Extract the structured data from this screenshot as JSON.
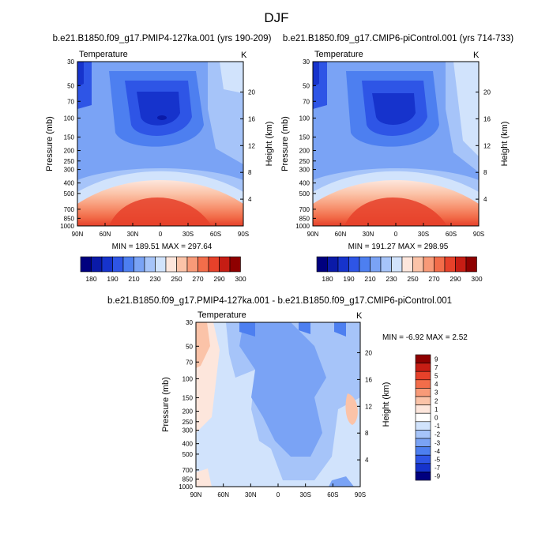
{
  "figure": {
    "title": "DJF",
    "bottom_title": "b.e21.B1850.f09_g17.PMIP4-127ka.001 - b.e21.B1850.f09_g17.CMIP6-piControl.001"
  },
  "chart_data": [
    {
      "type": "heatmap",
      "title": "b.e21.B1850.f09_g17.PMIP4-127ka.001 (yrs 190-209)",
      "left_label": "Temperature",
      "units": "K",
      "ylabel": "Pressure (mb)",
      "ylabel_right": "Height (km)",
      "x_ticks": [
        "90N",
        "60N",
        "30N",
        "0",
        "30S",
        "60S",
        "90S"
      ],
      "y_ticks": [
        "30",
        "50",
        "70",
        "100",
        "150",
        "200",
        "250",
        "300",
        "400",
        "500",
        "700",
        "850",
        "1000"
      ],
      "y_ticks_right": [
        "20",
        "16",
        "12",
        "8",
        "4"
      ],
      "stats_text": "MIN = 189.51   MAX = 297.64",
      "min": 189.51,
      "max": 297.64,
      "colorbar_labels": [
        "180",
        "190",
        "210",
        "230",
        "250",
        "270",
        "290",
        "300"
      ]
    },
    {
      "type": "heatmap",
      "title": "b.e21.B1850.f09_g17.CMIP6-piControl.001 (yrs 714-733)",
      "left_label": "Temperature",
      "units": "K",
      "ylabel": "Pressure (mb)",
      "ylabel_right": "Height (km)",
      "x_ticks": [
        "90N",
        "60N",
        "30N",
        "0",
        "30S",
        "60S",
        "90S"
      ],
      "y_ticks": [
        "30",
        "50",
        "70",
        "100",
        "150",
        "200",
        "250",
        "300",
        "400",
        "500",
        "700",
        "850",
        "1000"
      ],
      "y_ticks_right": [
        "20",
        "16",
        "12",
        "8",
        "4"
      ],
      "stats_text": "MIN = 191.27   MAX = 298.95",
      "min": 191.27,
      "max": 298.95,
      "colorbar_labels": [
        "180",
        "190",
        "210",
        "230",
        "250",
        "270",
        "290",
        "300"
      ]
    },
    {
      "type": "heatmap",
      "title": "b.e21.B1850.f09_g17.PMIP4-127ka.001 - b.e21.B1850.f09_g17.CMIP6-piControl.001",
      "left_label": "Temperature",
      "units": "K",
      "ylabel": "Pressure (mb)",
      "ylabel_right": "Height (km)",
      "x_ticks": [
        "90N",
        "60N",
        "30N",
        "0",
        "30S",
        "60S",
        "90S"
      ],
      "y_ticks": [
        "30",
        "50",
        "70",
        "100",
        "150",
        "200",
        "250",
        "300",
        "400",
        "500",
        "700",
        "850",
        "1000"
      ],
      "y_ticks_right": [
        "20",
        "16",
        "12",
        "8",
        "4"
      ],
      "stats_text": "MIN =  -6.92  MAX =   2.52",
      "min": -6.92,
      "max": 2.52,
      "colorbar_labels": [
        "9",
        "7",
        "5",
        "4",
        "3",
        "2",
        "1",
        "0",
        "-1",
        "-2",
        "-3",
        "-4",
        "-5",
        "-7",
        "-9"
      ]
    }
  ],
  "colors": {
    "temperature_scale": [
      "#00007f",
      "#0a1aa8",
      "#1633cc",
      "#2e55e6",
      "#4d7ff0",
      "#7aa3f5",
      "#a6c4f9",
      "#d1e3fc",
      "#fde6dc",
      "#fbc3a8",
      "#f89a78",
      "#f26d4a",
      "#e6412a",
      "#c61d14",
      "#8e0000"
    ],
    "difference_scale": [
      "#8e0000",
      "#c61d14",
      "#e6412a",
      "#f26d4a",
      "#f89a78",
      "#fbc3a8",
      "#fde6dc",
      "#ffffff",
      "#d1e3fc",
      "#a6c4f9",
      "#7aa3f5",
      "#4d7ff0",
      "#2e55e6",
      "#1633cc",
      "#00007f"
    ]
  }
}
